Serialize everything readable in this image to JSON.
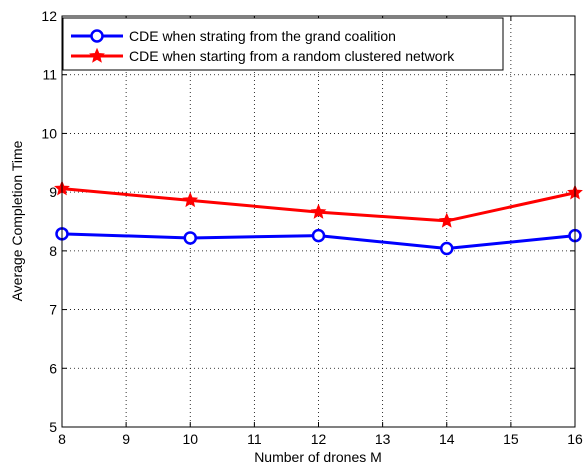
{
  "chart_data": {
    "type": "line",
    "xlabel": "Number of drones M",
    "ylabel": "Average Completion Time",
    "xlim": [
      8,
      16
    ],
    "ylim": [
      5,
      12
    ],
    "xticks": [
      8,
      9,
      10,
      11,
      12,
      13,
      14,
      15,
      16
    ],
    "yticks": [
      5,
      6,
      7,
      8,
      9,
      10,
      11,
      12
    ],
    "grid": true,
    "legend_position": "top-left",
    "series": [
      {
        "name": "CDE when strating from the grand coalition",
        "color": "#0000ff",
        "marker": "circle",
        "x": [
          8,
          10,
          12,
          14,
          16
        ],
        "y": [
          8.29,
          8.22,
          8.26,
          8.04,
          8.26
        ]
      },
      {
        "name": "CDE when starting from a random clustered network",
        "color": "#ff0000",
        "marker": "star",
        "x": [
          8,
          10,
          12,
          14,
          16
        ],
        "y": [
          9.06,
          8.86,
          8.66,
          8.51,
          8.99
        ]
      }
    ]
  }
}
